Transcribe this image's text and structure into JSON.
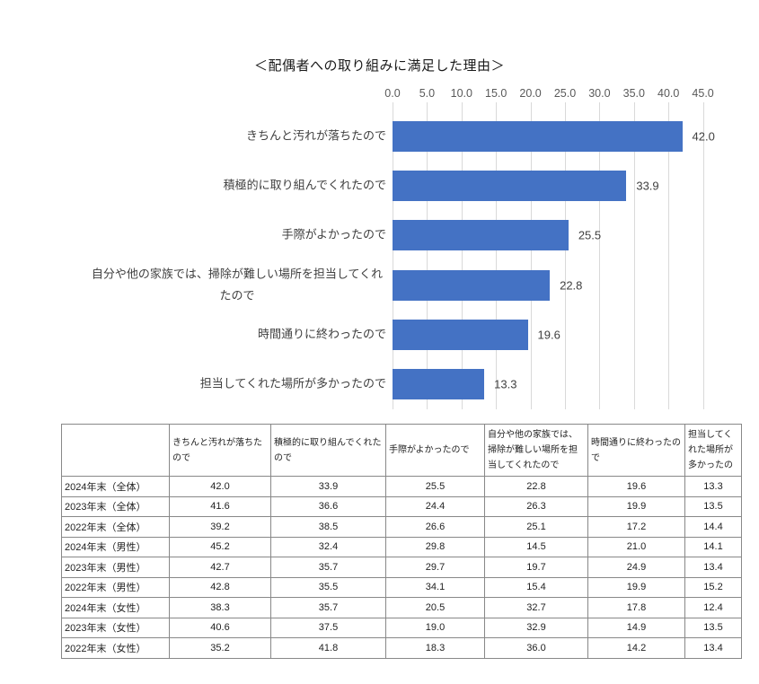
{
  "chart": {
    "title": "＜配偶者への取り組みに満足した理由＞"
  },
  "chart_data": {
    "type": "bar",
    "orientation": "horizontal",
    "title": "＜配偶者への取り組みに満足した理由＞",
    "categories": [
      "きちんと汚れが落ちたので",
      "積極的に取り組んでくれたので",
      "手際がよかったので",
      "自分や他の家族では、掃除が難しい場所を担当してくれたので",
      "時間通りに終わったので",
      "担当してくれた場所が多かったので"
    ],
    "values": [
      42.0,
      33.9,
      25.5,
      22.8,
      19.6,
      13.3
    ],
    "value_labels": [
      "42.0",
      "33.9",
      "25.5",
      "22.8",
      "19.6",
      "13.3"
    ],
    "xlim": [
      0,
      45
    ],
    "x_ticks": [
      0,
      5,
      10,
      15,
      20,
      25,
      30,
      35,
      40,
      45
    ],
    "x_tick_labels": [
      "0.0",
      "5.0",
      "10.0",
      "15.0",
      "20.0",
      "25.0",
      "30.0",
      "35.0",
      "40.0",
      "45.0"
    ],
    "grid": true,
    "legend": false,
    "bar_color": "#4472C4"
  },
  "table": {
    "column_headers": [
      "",
      "きちんと汚れが落ちたので",
      "積極的に取り組んでくれたので",
      "手際がよかったので",
      "自分や他の家族では、掃除が難しい場所を担当してくれたので",
      "時間通りに終わったので",
      "担当してくれた場所が多かったの"
    ],
    "rows": [
      {
        "label": "2024年末（全体）",
        "values": [
          "42.0",
          "33.9",
          "25.5",
          "22.8",
          "19.6",
          "13.3"
        ]
      },
      {
        "label": "2023年末（全体）",
        "values": [
          "41.6",
          "36.6",
          "24.4",
          "26.3",
          "19.9",
          "13.5"
        ]
      },
      {
        "label": "2022年末（全体）",
        "values": [
          "39.2",
          "38.5",
          "26.6",
          "25.1",
          "17.2",
          "14.4"
        ]
      },
      {
        "label": "2024年末（男性）",
        "values": [
          "45.2",
          "32.4",
          "29.8",
          "14.5",
          "21.0",
          "14.1"
        ]
      },
      {
        "label": "2023年末（男性）",
        "values": [
          "42.7",
          "35.7",
          "29.7",
          "19.7",
          "24.9",
          "13.4"
        ]
      },
      {
        "label": "2022年末（男性）",
        "values": [
          "42.8",
          "35.5",
          "34.1",
          "15.4",
          "19.9",
          "15.2"
        ]
      },
      {
        "label": "2024年末（女性）",
        "values": [
          "38.3",
          "35.7",
          "20.5",
          "32.7",
          "17.8",
          "12.4"
        ]
      },
      {
        "label": "2023年末（女性）",
        "values": [
          "40.6",
          "37.5",
          "19.0",
          "32.9",
          "14.9",
          "13.5"
        ]
      },
      {
        "label": "2022年末（女性）",
        "values": [
          "35.2",
          "41.8",
          "18.3",
          "36.0",
          "14.2",
          "13.4"
        ]
      }
    ]
  },
  "colors": {
    "bar": "#4472C4",
    "gridline": "#D9D9D9",
    "tick_text": "#595959",
    "label_text": "#404040",
    "table_border": "#888888",
    "table_text": "#222222",
    "title_text": "#1A1A1A",
    "background": "#FFFFFF"
  }
}
